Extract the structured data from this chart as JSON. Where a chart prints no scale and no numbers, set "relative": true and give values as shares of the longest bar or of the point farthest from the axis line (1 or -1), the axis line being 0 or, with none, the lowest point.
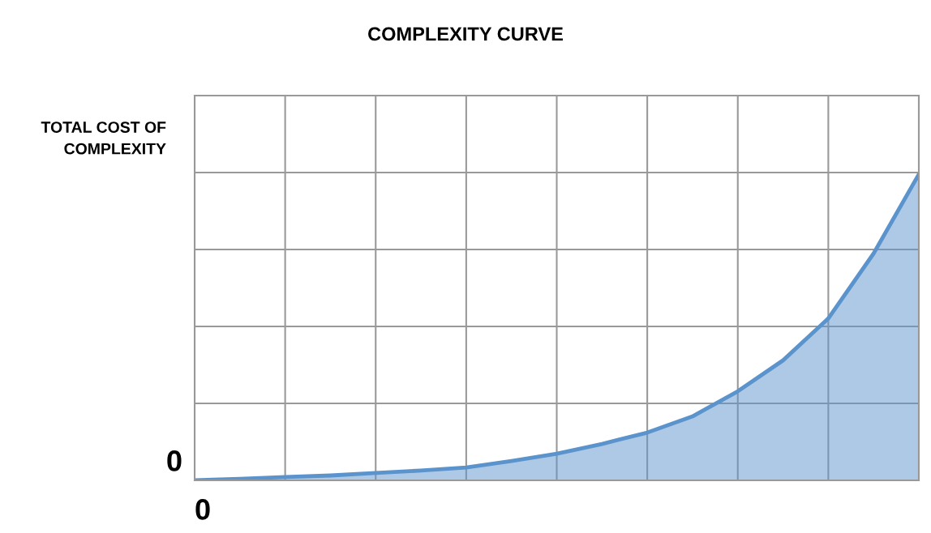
{
  "chart_data": {
    "type": "area",
    "title": "COMPLEXITY CURVE",
    "ylabel": "TOTAL COST OF\nCOMPLEXITY",
    "relative": true,
    "grid": true,
    "legend": false,
    "categories": [
      null,
      null,
      null,
      null,
      null,
      null,
      null,
      null,
      null,
      null,
      null,
      null,
      null,
      null,
      null,
      null,
      null
    ],
    "series": [
      {
        "color": "#5b93cc",
        "values": [
          0,
          0.005,
          0.011,
          0.016,
          0.024,
          0.032,
          0.042,
          0.063,
          0.087,
          0.119,
          0.156,
          0.209,
          0.291,
          0.392,
          0.529,
          0.741,
          1
        ]
      }
    ],
    "annotations": [
      "0",
      "0"
    ]
  }
}
